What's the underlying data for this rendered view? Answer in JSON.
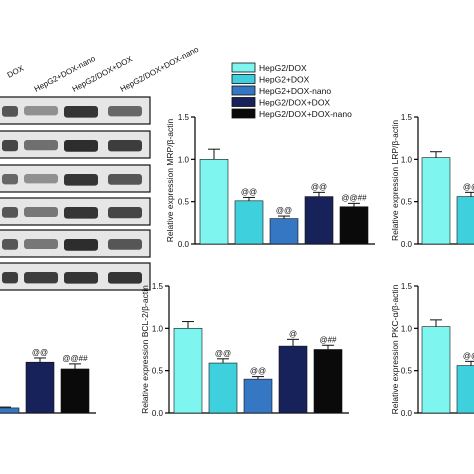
{
  "blot": {
    "lane_labels": [
      "DOX",
      "HepG2+DOX-nano",
      "HepG2/DOX+DOX",
      "HepG2/DOX+DOX-nano"
    ]
  },
  "legend": [
    "HepG2/DOX",
    "HepG2+DOX",
    "HepG2+DOX-nano",
    "HepG2/DOX+DOX",
    "HepG2/DOX+DOX-nano"
  ],
  "colors": [
    "#7ff5ef",
    "#3ed1dd",
    "#3677c4",
    "#17215a",
    "#0a0a0a"
  ],
  "chart_data": [
    {
      "type": "bar",
      "ylabel": "Relative expression MRP/β-actin",
      "ylim": [
        0,
        1.5
      ],
      "yticks": [
        "0.0",
        "0.5",
        "1.0",
        "1.5"
      ],
      "categories": [
        "HepG2/DOX",
        "HepG2+DOX",
        "HepG2+DOX-nano",
        "HepG2/DOX+DOX",
        "HepG2/DOX+DOX-nano"
      ],
      "values": [
        1.0,
        0.51,
        0.3,
        0.56,
        0.44
      ],
      "errors": [
        0.12,
        0.04,
        0.03,
        0.05,
        0.04
      ],
      "annotations": [
        "",
        "@@",
        "@@",
        "@@",
        "@@##"
      ]
    },
    {
      "type": "bar",
      "ylabel": "Relative expression LRP/β-actin",
      "ylim": [
        0,
        1.5
      ],
      "yticks": [
        "0.0",
        "0.5",
        "1.0",
        "1.5"
      ],
      "categories": [
        "HepG2/DOX",
        "HepG2+DOX"
      ],
      "values": [
        1.02,
        0.56
      ],
      "errors": [
        0.07,
        0.05
      ],
      "annotations": [
        "",
        "@@"
      ]
    },
    {
      "type": "bar",
      "ylabel": "",
      "ylim": [
        0,
        1.5
      ],
      "yticks": [],
      "categories": [
        "HepG2+DOX-nano",
        "HepG2/DOX+DOX",
        "HepG2/DOX+DOX-nano"
      ],
      "values": [
        0.06,
        0.6,
        0.52
      ],
      "errors": [
        0.01,
        0.05,
        0.06
      ],
      "annotations": [
        "",
        "@@",
        "@@##"
      ]
    },
    {
      "type": "bar",
      "ylabel": "Relative expression BCL-2/β-actin",
      "ylim": [
        0,
        1.5
      ],
      "yticks": [
        "0.0",
        "0.5",
        "1.0",
        "1.5"
      ],
      "categories": [
        "HepG2/DOX",
        "HepG2+DOX",
        "HepG2+DOX-nano",
        "HepG2/DOX+DOX",
        "HepG2/DOX+DOX-nano"
      ],
      "values": [
        1.0,
        0.59,
        0.4,
        0.79,
        0.75
      ],
      "errors": [
        0.08,
        0.05,
        0.03,
        0.08,
        0.05
      ],
      "annotations": [
        "",
        "@@",
        "@@",
        "@",
        "@##"
      ]
    },
    {
      "type": "bar",
      "ylabel": "Relative expression PKC-α/β-actin",
      "ylim": [
        0,
        1.5
      ],
      "yticks": [
        "0.0",
        "0.5",
        "1.0",
        "1.5"
      ],
      "categories": [
        "HepG2/DOX",
        "HepG2+DOX"
      ],
      "values": [
        1.02,
        0.56
      ],
      "errors": [
        0.08,
        0.05
      ],
      "annotations": [
        "",
        "@@"
      ]
    }
  ]
}
